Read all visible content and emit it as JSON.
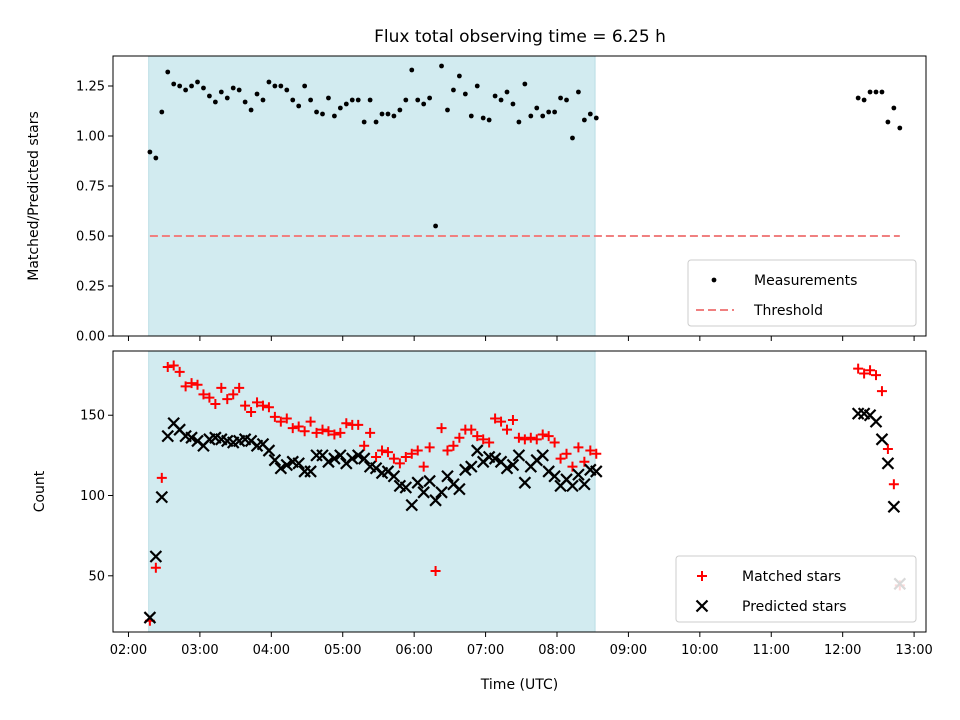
{
  "figure": {
    "title": "Flux total observing time = 6.25 h"
  },
  "chart_data": [
    {
      "type": "scatter",
      "ylabel": "Matched/Predicted stars",
      "xlabel": "",
      "ylim": [
        0,
        1.4
      ],
      "yticks": [
        "0.00",
        "0.25",
        "0.50",
        "0.75",
        "1.00",
        "1.25"
      ],
      "xlim": [
        "01:47",
        "13:10"
      ],
      "shaded_interval": [
        "02:17",
        "08:32"
      ],
      "shade_color": "#d2ebf0",
      "legend": "lower-right",
      "series": [
        {
          "name": "Measurements",
          "marker": "dot",
          "color": "#000000",
          "points": [
            [
              "02:18",
              0.92
            ],
            [
              "02:23",
              0.89
            ],
            [
              "02:28",
              1.12
            ],
            [
              "02:33",
              1.32
            ],
            [
              "02:38",
              1.26
            ],
            [
              "02:43",
              1.25
            ],
            [
              "02:48",
              1.23
            ],
            [
              "02:53",
              1.25
            ],
            [
              "02:58",
              1.27
            ],
            [
              "03:03",
              1.24
            ],
            [
              "03:08",
              1.2
            ],
            [
              "03:13",
              1.17
            ],
            [
              "03:18",
              1.22
            ],
            [
              "03:23",
              1.19
            ],
            [
              "03:28",
              1.24
            ],
            [
              "03:33",
              1.23
            ],
            [
              "03:38",
              1.17
            ],
            [
              "03:43",
              1.13
            ],
            [
              "03:48",
              1.21
            ],
            [
              "03:53",
              1.18
            ],
            [
              "03:58",
              1.27
            ],
            [
              "04:03",
              1.25
            ],
            [
              "04:08",
              1.25
            ],
            [
              "04:13",
              1.23
            ],
            [
              "04:18",
              1.18
            ],
            [
              "04:23",
              1.15
            ],
            [
              "04:28",
              1.25
            ],
            [
              "04:33",
              1.18
            ],
            [
              "04:38",
              1.12
            ],
            [
              "04:43",
              1.11
            ],
            [
              "04:48",
              1.19
            ],
            [
              "04:53",
              1.1
            ],
            [
              "04:58",
              1.14
            ],
            [
              "05:03",
              1.16
            ],
            [
              "05:08",
              1.18
            ],
            [
              "05:13",
              1.18
            ],
            [
              "05:18",
              1.07
            ],
            [
              "05:23",
              1.18
            ],
            [
              "05:28",
              1.07
            ],
            [
              "05:33",
              1.11
            ],
            [
              "05:38",
              1.11
            ],
            [
              "05:43",
              1.1
            ],
            [
              "05:48",
              1.13
            ],
            [
              "05:53",
              1.18
            ],
            [
              "05:58",
              1.33
            ],
            [
              "06:03",
              1.18
            ],
            [
              "06:08",
              1.16
            ],
            [
              "06:13",
              1.19
            ],
            [
              "06:18",
              0.55
            ],
            [
              "06:23",
              1.35
            ],
            [
              "06:28",
              1.13
            ],
            [
              "06:33",
              1.23
            ],
            [
              "06:38",
              1.3
            ],
            [
              "06:43",
              1.21
            ],
            [
              "06:48",
              1.1
            ],
            [
              "06:53",
              1.25
            ],
            [
              "06:58",
              1.09
            ],
            [
              "07:03",
              1.08
            ],
            [
              "07:08",
              1.2
            ],
            [
              "07:13",
              1.18
            ],
            [
              "07:18",
              1.22
            ],
            [
              "07:23",
              1.16
            ],
            [
              "07:28",
              1.07
            ],
            [
              "07:33",
              1.26
            ],
            [
              "07:38",
              1.1
            ],
            [
              "07:43",
              1.14
            ],
            [
              "07:48",
              1.1
            ],
            [
              "07:53",
              1.12
            ],
            [
              "07:58",
              1.12
            ],
            [
              "08:03",
              1.19
            ],
            [
              "08:08",
              1.18
            ],
            [
              "08:13",
              0.99
            ],
            [
              "08:18",
              1.22
            ],
            [
              "08:23",
              1.08
            ],
            [
              "08:28",
              1.11
            ],
            [
              "08:33",
              1.09
            ],
            [
              "12:13",
              1.19
            ],
            [
              "12:18",
              1.18
            ],
            [
              "12:23",
              1.22
            ],
            [
              "12:28",
              1.22
            ],
            [
              "12:33",
              1.22
            ],
            [
              "12:38",
              1.07
            ],
            [
              "12:43",
              1.14
            ],
            [
              "12:48",
              1.04
            ]
          ]
        },
        {
          "name": "Threshold",
          "marker": "dashed-line",
          "color": "#f08080",
          "points": [
            [
              "02:18",
              0.5
            ],
            [
              "12:48",
              0.5
            ]
          ]
        }
      ]
    },
    {
      "type": "scatter",
      "ylabel": "Count",
      "xlabel": "Time (UTC)",
      "ylim": [
        15,
        190
      ],
      "yticks": [
        "50",
        "100",
        "150"
      ],
      "xlim": [
        "01:47",
        "13:10"
      ],
      "xticks": [
        "02:00",
        "03:00",
        "04:00",
        "05:00",
        "06:00",
        "07:00",
        "08:00",
        "09:00",
        "10:00",
        "11:00",
        "12:00",
        "13:00"
      ],
      "shaded_interval": [
        "02:17",
        "08:32"
      ],
      "shade_color": "#d2ebf0",
      "legend": "lower-right",
      "series": [
        {
          "name": "Matched stars",
          "marker": "plus",
          "color": "#ff0000",
          "points": [
            [
              "02:18",
              22
            ],
            [
              "02:23",
              55
            ],
            [
              "02:28",
              111
            ],
            [
              "02:33",
              180
            ],
            [
              "02:38",
              181
            ],
            [
              "02:43",
              177
            ],
            [
              "02:48",
              168
            ],
            [
              "02:53",
              170
            ],
            [
              "02:58",
              169
            ],
            [
              "03:03",
              163
            ],
            [
              "03:08",
              161
            ],
            [
              "03:13",
              157
            ],
            [
              "03:18",
              167
            ],
            [
              "03:23",
              160
            ],
            [
              "03:28",
              163
            ],
            [
              "03:33",
              167
            ],
            [
              "03:38",
              156
            ],
            [
              "03:43",
              152
            ],
            [
              "03:48",
              158
            ],
            [
              "03:53",
              156
            ],
            [
              "03:58",
              155
            ],
            [
              "04:03",
              149
            ],
            [
              "04:08",
              146
            ],
            [
              "04:13",
              148
            ],
            [
              "04:18",
              142
            ],
            [
              "04:23",
              143
            ],
            [
              "04:28",
              140
            ],
            [
              "04:33",
              146
            ],
            [
              "04:38",
              139
            ],
            [
              "04:43",
              141
            ],
            [
              "04:48",
              140
            ],
            [
              "04:53",
              138
            ],
            [
              "04:58",
              139
            ],
            [
              "05:03",
              145
            ],
            [
              "05:08",
              144
            ],
            [
              "05:13",
              144
            ],
            [
              "05:18",
              131
            ],
            [
              "05:23",
              139
            ],
            [
              "05:28",
              124
            ],
            [
              "05:33",
              128
            ],
            [
              "05:38",
              127
            ],
            [
              "05:43",
              123
            ],
            [
              "05:48",
              120
            ],
            [
              "05:53",
              124
            ],
            [
              "05:58",
              126
            ],
            [
              "06:03",
              128
            ],
            [
              "06:08",
              118
            ],
            [
              "06:13",
              130
            ],
            [
              "06:18",
              53
            ],
            [
              "06:23",
              142
            ],
            [
              "06:28",
              128
            ],
            [
              "06:33",
              131
            ],
            [
              "06:38",
              136
            ],
            [
              "06:43",
              141
            ],
            [
              "06:48",
              141
            ],
            [
              "06:53",
              137
            ],
            [
              "06:58",
              135
            ],
            [
              "07:03",
              133
            ],
            [
              "07:08",
              148
            ],
            [
              "07:13",
              146
            ],
            [
              "07:18",
              141
            ],
            [
              "07:23",
              147
            ],
            [
              "07:28",
              136
            ],
            [
              "07:33",
              135
            ],
            [
              "07:38",
              136
            ],
            [
              "07:43",
              135
            ],
            [
              "07:48",
              138
            ],
            [
              "07:53",
              137
            ],
            [
              "07:58",
              133
            ],
            [
              "08:03",
              123
            ],
            [
              "08:08",
              126
            ],
            [
              "08:13",
              118
            ],
            [
              "08:18",
              130
            ],
            [
              "08:23",
              121
            ],
            [
              "08:28",
              128
            ],
            [
              "08:33",
              126
            ],
            [
              "12:13",
              179
            ],
            [
              "12:18",
              176
            ],
            [
              "12:23",
              178
            ],
            [
              "12:28",
              175
            ],
            [
              "12:33",
              165
            ],
            [
              "12:38",
              129
            ],
            [
              "12:43",
              107
            ],
            [
              "12:48",
              44
            ]
          ]
        },
        {
          "name": "Predicted stars",
          "marker": "x",
          "color": "#000000",
          "points": [
            [
              "02:18",
              24
            ],
            [
              "02:23",
              62
            ],
            [
              "02:28",
              99
            ],
            [
              "02:33",
              137
            ],
            [
              "02:38",
              145
            ],
            [
              "02:43",
              141
            ],
            [
              "02:48",
              137
            ],
            [
              "02:53",
              136
            ],
            [
              "02:58",
              134
            ],
            [
              "03:03",
              131
            ],
            [
              "03:08",
              135
            ],
            [
              "03:13",
              136
            ],
            [
              "03:18",
              135
            ],
            [
              "03:23",
              134
            ],
            [
              "03:28",
              133
            ],
            [
              "03:33",
              134
            ],
            [
              "03:38",
              135
            ],
            [
              "03:43",
              134
            ],
            [
              "03:48",
              131
            ],
            [
              "03:53",
              132
            ],
            [
              "03:58",
              128
            ],
            [
              "04:03",
              122
            ],
            [
              "04:08",
              117
            ],
            [
              "04:13",
              119
            ],
            [
              "04:18",
              121
            ],
            [
              "04:23",
              120
            ],
            [
              "04:28",
              115
            ],
            [
              "04:33",
              115
            ],
            [
              "04:38",
              125
            ],
            [
              "04:43",
              125
            ],
            [
              "04:48",
              121
            ],
            [
              "04:53",
              123
            ],
            [
              "04:58",
              125
            ],
            [
              "05:03",
              120
            ],
            [
              "05:08",
              123
            ],
            [
              "05:13",
              125
            ],
            [
              "05:18",
              123
            ],
            [
              "05:23",
              118
            ],
            [
              "05:28",
              117
            ],
            [
              "05:33",
              114
            ],
            [
              "05:38",
              115
            ],
            [
              "05:43",
              112
            ],
            [
              "05:48",
              106
            ],
            [
              "05:53",
              105
            ],
            [
              "05:58",
              94
            ],
            [
              "06:03",
              108
            ],
            [
              "06:08",
              102
            ],
            [
              "06:13",
              109
            ],
            [
              "06:18",
              97
            ],
            [
              "06:23",
              102
            ],
            [
              "06:28",
              112
            ],
            [
              "06:33",
              107
            ],
            [
              "06:38",
              104
            ],
            [
              "06:43",
              116
            ],
            [
              "06:48",
              118
            ],
            [
              "06:53",
              128
            ],
            [
              "06:58",
              121
            ],
            [
              "07:03",
              124
            ],
            [
              "07:08",
              123
            ],
            [
              "07:13",
              121
            ],
            [
              "07:18",
              117
            ],
            [
              "07:23",
              119
            ],
            [
              "07:28",
              125
            ],
            [
              "07:33",
              108
            ],
            [
              "07:38",
              118
            ],
            [
              "07:43",
              122
            ],
            [
              "07:48",
              125
            ],
            [
              "07:53",
              115
            ],
            [
              "07:58",
              112
            ],
            [
              "08:03",
              106
            ],
            [
              "08:08",
              110
            ],
            [
              "08:13",
              106
            ],
            [
              "08:18",
              113
            ],
            [
              "08:23",
              107
            ],
            [
              "08:28",
              116
            ],
            [
              "08:33",
              115
            ],
            [
              "12:13",
              151
            ],
            [
              "12:18",
              151
            ],
            [
              "12:23",
              150
            ],
            [
              "12:28",
              146
            ],
            [
              "12:33",
              135
            ],
            [
              "12:38",
              120
            ],
            [
              "12:43",
              93
            ],
            [
              "12:48",
              45
            ]
          ]
        }
      ]
    }
  ]
}
